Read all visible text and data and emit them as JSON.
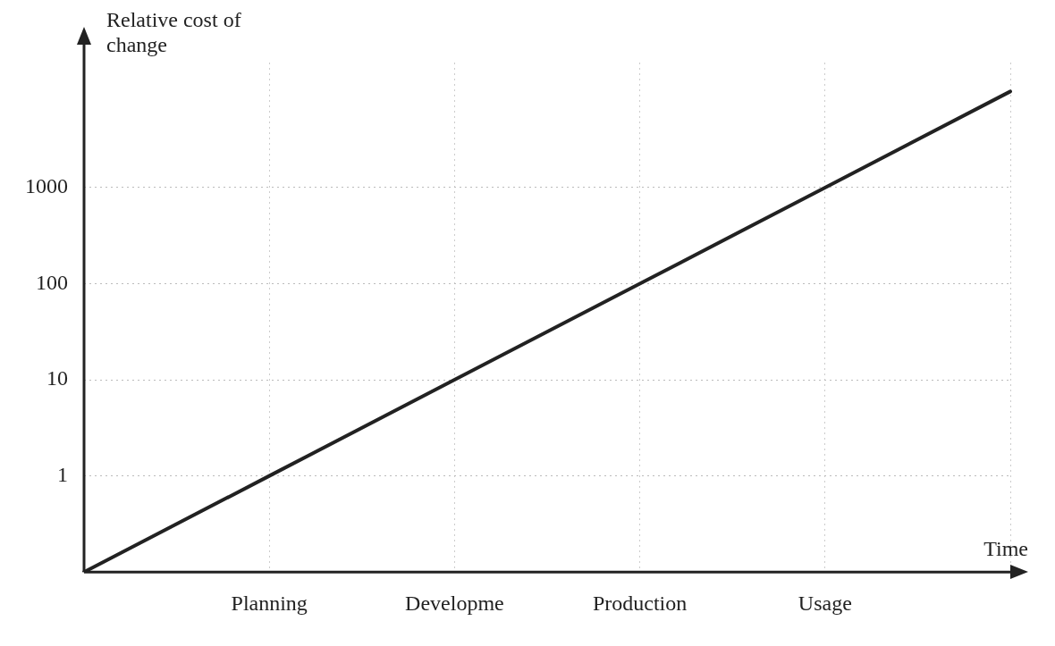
{
  "chart_data": {
    "type": "line",
    "xlabel": "Time",
    "ylabel": "Relative cost of change",
    "categories": [
      null,
      "Planning",
      "Developme",
      "Production",
      "Usage",
      null
    ],
    "series": [
      {
        "color": "#222222",
        "values": [
          0.1,
          1,
          10,
          100,
          1000,
          10000
        ]
      }
    ],
    "log": "y",
    "ylim": [
      0.1,
      20000
    ],
    "yticks": [
      1,
      10,
      100,
      1000
    ],
    "grid": true,
    "legend": false,
    "marker": "none",
    "line_style": "solid"
  }
}
